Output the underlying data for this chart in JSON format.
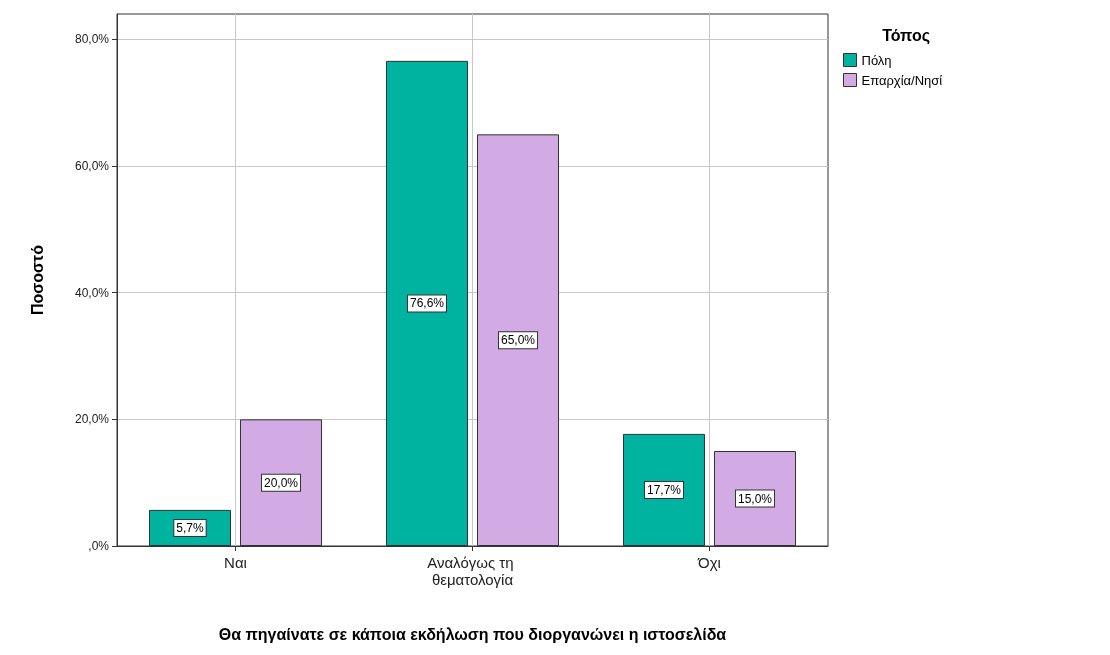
{
  "chart_data": {
    "type": "bar",
    "xlabel": "Θα πηγαίνατε σε κάποια εκδήλωση που διοργανώνει η ιστοσελίδα",
    "ylabel": "Ποσοστό",
    "legend_title": "Τόπος",
    "categories": [
      "Ναι",
      "Αναλόγως τη θεματολογία",
      "Όχι"
    ],
    "series": [
      {
        "name": "Πόλη",
        "color": "#00b3a0",
        "values": [
          5.7,
          76.6,
          17.7
        ],
        "value_labels": [
          "5,7%",
          "76,6%",
          "17,7%"
        ]
      },
      {
        "name": "Επαρχία/Νησί",
        "color": "#d2aae4",
        "values": [
          20.0,
          65.0,
          15.0
        ],
        "value_labels": [
          "20,0%",
          "65,0%",
          "15,0%"
        ]
      }
    ],
    "ylim": [
      0,
      84
    ],
    "yticks": [
      {
        "value": 0,
        "label": ",0%"
      },
      {
        "value": 20,
        "label": "20,0%"
      },
      {
        "value": 40,
        "label": "40,0%"
      },
      {
        "value": 60,
        "label": "60,0%"
      },
      {
        "value": 80,
        "label": "80,0%"
      }
    ],
    "grid": true,
    "legend": "top right"
  }
}
